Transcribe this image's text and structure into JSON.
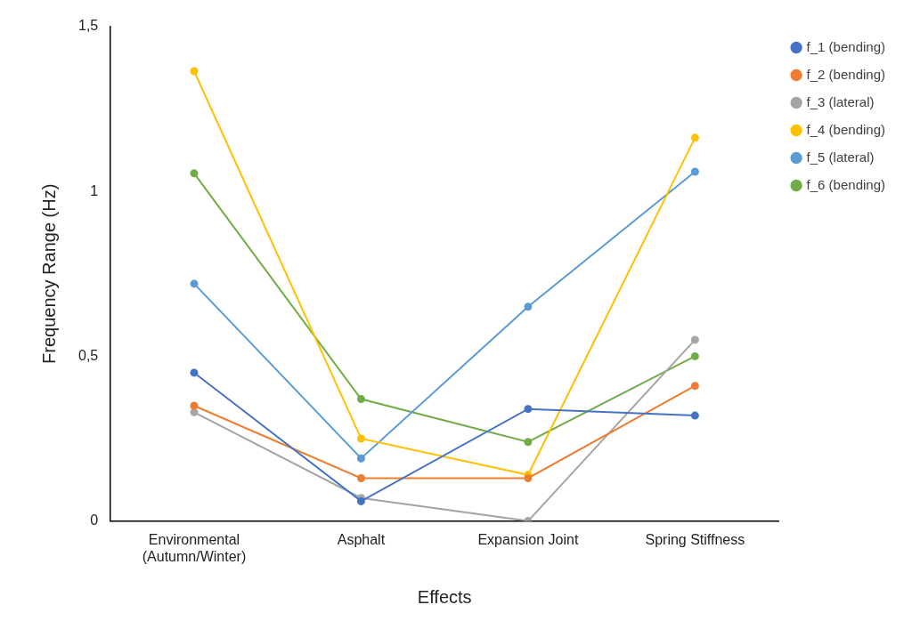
{
  "chart_data": {
    "type": "line",
    "x_label": "Effects",
    "y_label": "Frequency Range (Hz)",
    "categories": [
      "Environmental (Autumn/Winter)",
      "Asphalt",
      "Expansion Joint",
      "Spring Stiffness"
    ],
    "series": [
      {
        "name": "f_1 (bending)",
        "color": "#4472c4",
        "values": [
          0.45,
          0.06,
          0.34,
          0.32
        ]
      },
      {
        "name": "f_2 (bending)",
        "color": "#ed7d31",
        "values": [
          0.35,
          0.13,
          0.13,
          0.41
        ]
      },
      {
        "name": "f_3 (lateral)",
        "color": "#a5a5a5",
        "values": [
          0.33,
          0.07,
          0.0,
          0.55
        ]
      },
      {
        "name": "f_4 (bending)",
        "color": "#ffc000",
        "values": [
          1.365,
          0.25,
          0.14,
          1.163
        ]
      },
      {
        "name": "f_5 (lateral)",
        "color": "#5b9bd5",
        "values": [
          0.72,
          0.19,
          0.65,
          1.06
        ]
      },
      {
        "name": "f_6 (bending)",
        "color": "#70ad47",
        "values": [
          1.055,
          0.37,
          0.24,
          0.5
        ]
      }
    ],
    "ylim": [
      0,
      1.5
    ],
    "yticks": [
      0,
      {
        "value": 0.5,
        "label": "0,5"
      },
      1,
      {
        "value": 1.5,
        "label": "1,5"
      }
    ],
    "grid": false,
    "legend": "right",
    "marker": "circle",
    "line_style": "solid"
  }
}
